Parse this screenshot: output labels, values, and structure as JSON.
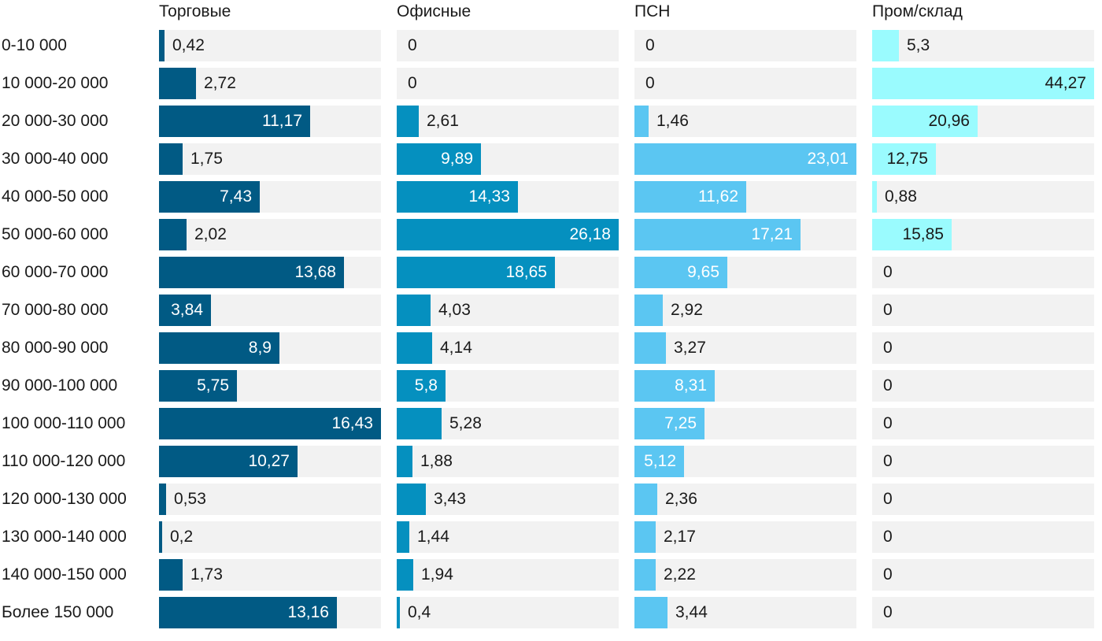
{
  "chart_data": {
    "type": "bar",
    "orientation": "horizontal",
    "layout": "small-multiples",
    "categories": [
      "0-10 000",
      "10 000-20 000",
      "20 000-30 000",
      "30 000-40 000",
      "40 000-50 000",
      "50 000-60 000",
      "60 000-70 000",
      "70 000-80 000",
      "80 000-90 000",
      "90 000-100 000",
      "100 000-110 000",
      "110 000-120 000",
      "120 000-130 000",
      "130 000-140 000",
      "140 000-150 000",
      "Более 150 000"
    ],
    "series": [
      {
        "name": "Торговые",
        "color": "#015a84",
        "max": 16.43,
        "values": [
          0.42,
          2.72,
          11.17,
          1.75,
          7.43,
          2.02,
          13.68,
          3.84,
          8.9,
          5.75,
          16.43,
          10.27,
          0.53,
          0.2,
          1.73,
          13.16
        ],
        "labels": [
          "0,42",
          "2,72",
          "11,17",
          "1,75",
          "7,43",
          "2,02",
          "13,68",
          "3,84",
          "8,9",
          "5,75",
          "16,43",
          "10,27",
          "0,53",
          "0,2",
          "1,73",
          "13,16"
        ]
      },
      {
        "name": "Офисные",
        "color": "#0590bf",
        "max": 26.18,
        "values": [
          0,
          0,
          2.61,
          9.89,
          14.33,
          26.18,
          18.65,
          4.03,
          4.14,
          5.8,
          5.28,
          1.88,
          3.43,
          1.44,
          1.94,
          0.4
        ],
        "labels": [
          "0",
          "0",
          "2,61",
          "9,89",
          "14,33",
          "26,18",
          "18,65",
          "4,03",
          "4,14",
          "5,8",
          "5,28",
          "1,88",
          "3,43",
          "1,44",
          "1,94",
          "0,4"
        ]
      },
      {
        "name": "ПСН",
        "color": "#5bc6f2",
        "max": 23.01,
        "values": [
          0,
          0,
          1.46,
          23.01,
          11.62,
          17.21,
          9.65,
          2.92,
          3.27,
          8.31,
          7.25,
          5.12,
          2.36,
          2.17,
          2.22,
          3.44
        ],
        "labels": [
          "0",
          "0",
          "1,46",
          "23,01",
          "11,62",
          "17,21",
          "9,65",
          "2,92",
          "3,27",
          "8,31",
          "7,25",
          "5,12",
          "2,36",
          "2,17",
          "2,22",
          "3,44"
        ]
      },
      {
        "name": "Пром/склад",
        "color": "#9afbfe",
        "max": 44.27,
        "values": [
          5.3,
          44.27,
          20.96,
          12.75,
          0.88,
          15.85,
          0,
          0,
          0,
          0,
          0,
          0,
          0,
          0,
          0,
          0
        ],
        "labels": [
          "5,3",
          "44,27",
          "20,96",
          "12,75",
          "0,88",
          "15,85",
          "0",
          "0",
          "0",
          "0",
          "0",
          "0",
          "0",
          "0",
          "0",
          "0"
        ]
      }
    ],
    "title": "",
    "xlabel": "",
    "ylabel": "",
    "grid": false,
    "legend": "none"
  }
}
